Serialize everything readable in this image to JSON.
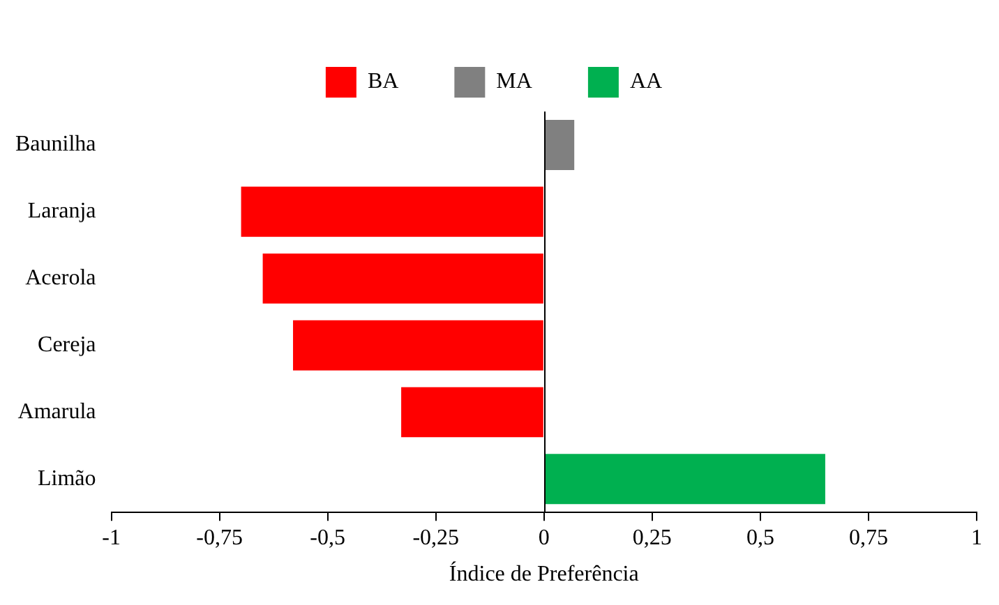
{
  "chart_data": {
    "type": "bar",
    "orientation": "horizontal",
    "xlabel": "Índice de Preferência",
    "categories": [
      "Baunilha",
      "Laranja",
      "Acerola",
      "Cereja",
      "Amarula",
      "Limão"
    ],
    "series": [
      {
        "name": "BA",
        "color": "#ff0000",
        "values": [
          null,
          -0.7,
          -0.65,
          -0.58,
          -0.33,
          null
        ]
      },
      {
        "name": "MA",
        "color": "#808080",
        "values": [
          0.07,
          null,
          null,
          null,
          null,
          null
        ]
      },
      {
        "name": "AA",
        "color": "#00b050",
        "values": [
          null,
          null,
          null,
          null,
          null,
          0.65
        ]
      }
    ],
    "xlim": [
      -1,
      1
    ],
    "xticks": [
      -1,
      {
        "value": -0.75,
        "label": "-0,75"
      },
      {
        "value": -0.5,
        "label": "-0,5"
      },
      {
        "value": -0.25,
        "label": "-0,25"
      },
      0,
      {
        "value": 0.25,
        "label": "0,25"
      },
      {
        "value": 0.5,
        "label": "0,5"
      },
      {
        "value": 0.75,
        "label": "0,75"
      },
      1
    ],
    "legend": "top"
  }
}
